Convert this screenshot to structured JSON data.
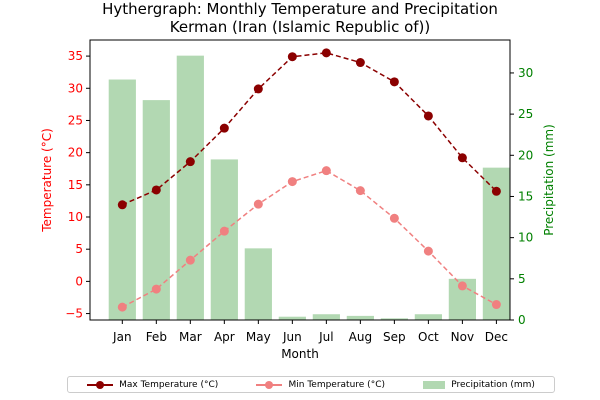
{
  "chart_data": {
    "type": "bar+line",
    "title": "Hythergraph: Monthly Temperature and Precipitation",
    "subtitle": "Kerman (Iran (Islamic Republic of))",
    "xlabel": "Month",
    "ylabel_left": "Temperature (°C)",
    "ylabel_right": "Precipitation (mm)",
    "categories": [
      "Jan",
      "Feb",
      "Mar",
      "Apr",
      "May",
      "Jun",
      "Jul",
      "Aug",
      "Sep",
      "Oct",
      "Nov",
      "Dec"
    ],
    "ylim_left": [
      -6,
      37.5
    ],
    "yticks_left": [
      -5,
      0,
      5,
      10,
      15,
      20,
      25,
      30,
      35
    ],
    "ylim_right": [
      0,
      34
    ],
    "yticks_right": [
      0,
      5,
      10,
      15,
      20,
      25,
      30
    ],
    "series": [
      {
        "name": "Max Temperature (°C)",
        "axis": "left",
        "kind": "line",
        "color": "#8b0000",
        "values": [
          11.9,
          14.2,
          18.6,
          23.8,
          29.9,
          34.9,
          35.5,
          34.0,
          31.0,
          25.7,
          19.2,
          14.0
        ]
      },
      {
        "name": "Min Temperature (°C)",
        "axis": "left",
        "kind": "line",
        "color": "#f08080",
        "values": [
          -4.0,
          -1.2,
          3.3,
          7.8,
          12.0,
          15.5,
          17.2,
          14.1,
          9.8,
          4.7,
          -0.7,
          -3.6
        ]
      },
      {
        "name": "Precipitation (mm)",
        "axis": "right",
        "kind": "bar",
        "color": "#b2d8b2",
        "values": [
          29.2,
          26.7,
          32.1,
          19.5,
          8.7,
          0.4,
          0.7,
          0.5,
          0.2,
          0.7,
          5.0,
          18.5
        ]
      }
    ],
    "legend": "bottom-center",
    "grid": false
  }
}
